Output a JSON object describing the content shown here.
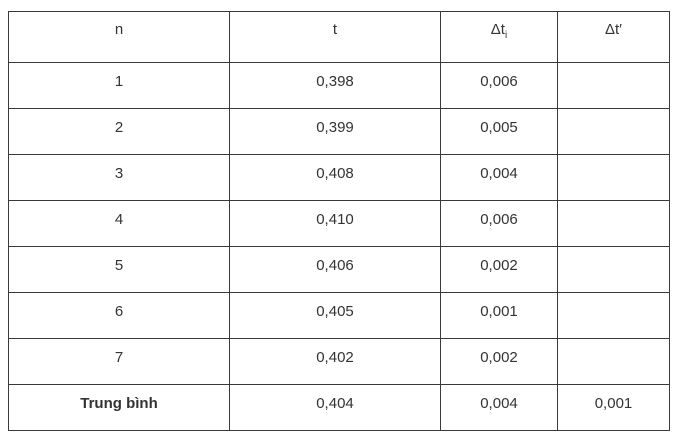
{
  "table": {
    "header": [
      "n",
      "t",
      {
        "main": "Δt",
        "sub": "i"
      },
      "Δt′"
    ],
    "rows": [
      [
        "1",
        "0,398",
        "0,006"
      ],
      [
        "2",
        "0,399",
        "0,005"
      ],
      [
        "3",
        "0,408",
        "0,004"
      ],
      [
        "4",
        "0,410",
        "0,006"
      ],
      [
        "5",
        "0,406",
        "0,002"
      ],
      [
        "6",
        "0,405",
        "0,001"
      ],
      [
        "7",
        "0,402",
        "0,002"
      ],
      [
        "Trung bình",
        "0,404",
        "0,004",
        "0,001"
      ]
    ]
  }
}
